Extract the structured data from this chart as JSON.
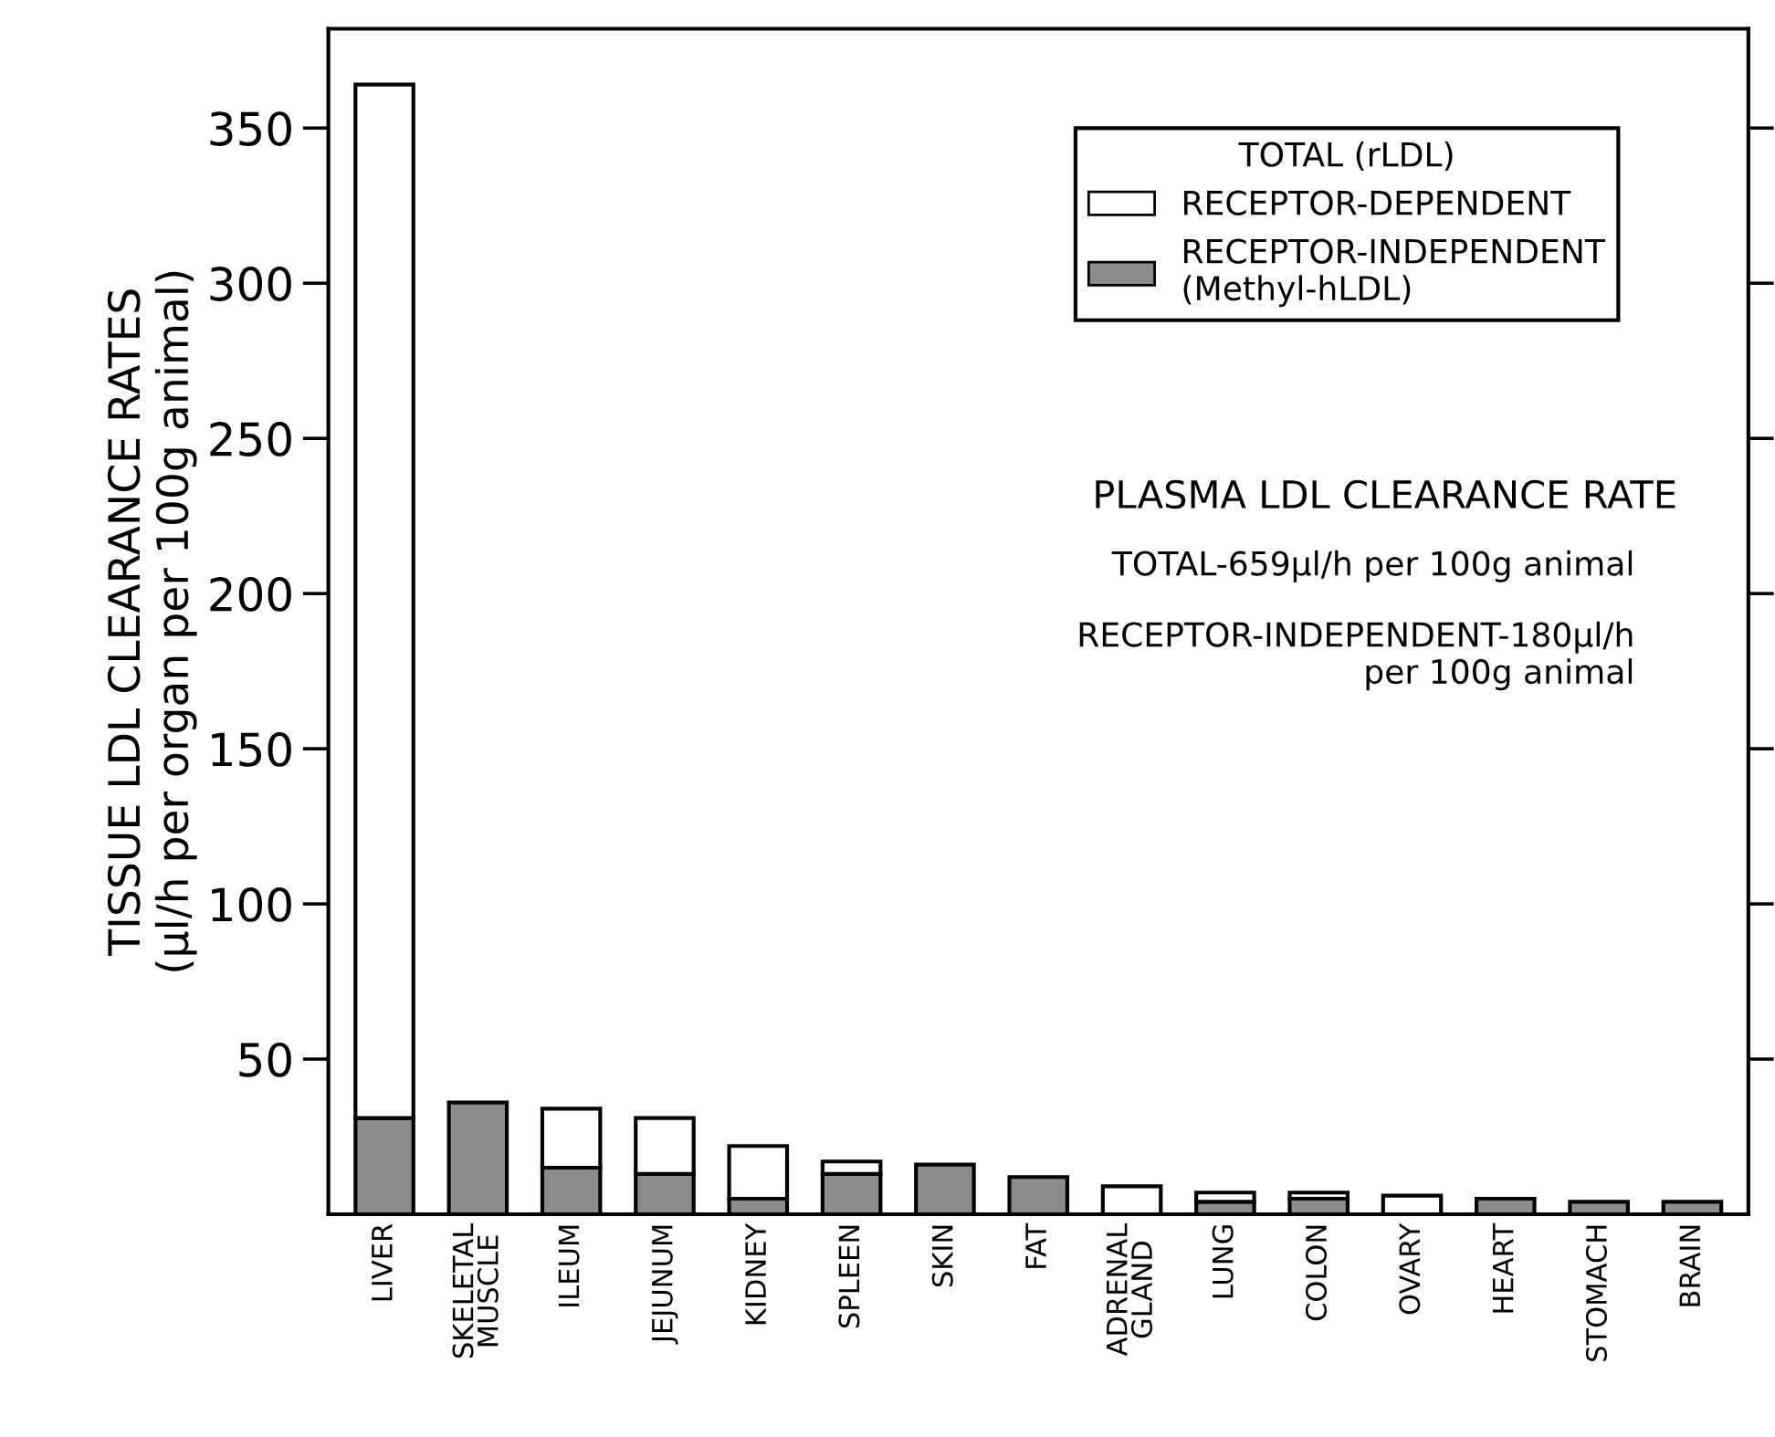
{
  "chart_data": {
    "type": "bar",
    "stacked": true,
    "ylabel": "TISSUE LDL CLEARANCE RATES\n(μl/h per organ per 100g animal)",
    "categories": [
      "LIVER",
      "SKELETAL\nMUSCLE",
      "ILEUM",
      "JEJUNUM",
      "KIDNEY",
      "SPLEEN",
      "SKIN",
      "FAT",
      "ADRENAL\nGLAND",
      "LUNG",
      "COLON",
      "OVARY",
      "HEART",
      "STOMACH",
      "BRAIN"
    ],
    "series": [
      {
        "name": "RECEPTOR-INDEPENDENT\n(Methyl-hLDL)",
        "color": "#8c8c8c",
        "values": [
          31,
          36,
          15,
          13,
          5,
          13,
          16,
          12,
          null,
          4,
          5,
          null,
          5,
          4,
          4
        ]
      },
      {
        "name": "RECEPTOR-DEPENDENT",
        "color": "#ffffff",
        "values": [
          333,
          null,
          19,
          18,
          17,
          4,
          null,
          null,
          9,
          3,
          2,
          6,
          null,
          null,
          null
        ]
      }
    ],
    "legend_title": "TOTAL (rLDL)",
    "legend": "top right",
    "ylim": [
      0,
      382
    ],
    "yticks": [
      50,
      100,
      150,
      200,
      250,
      300,
      350
    ],
    "annotations": [
      "PLASMA LDL CLEARANCE RATE",
      "TOTAL-659μl/h per 100g animal",
      "RECEPTOR-INDEPENDENT-180μl/h\nper 100g animal"
    ]
  }
}
